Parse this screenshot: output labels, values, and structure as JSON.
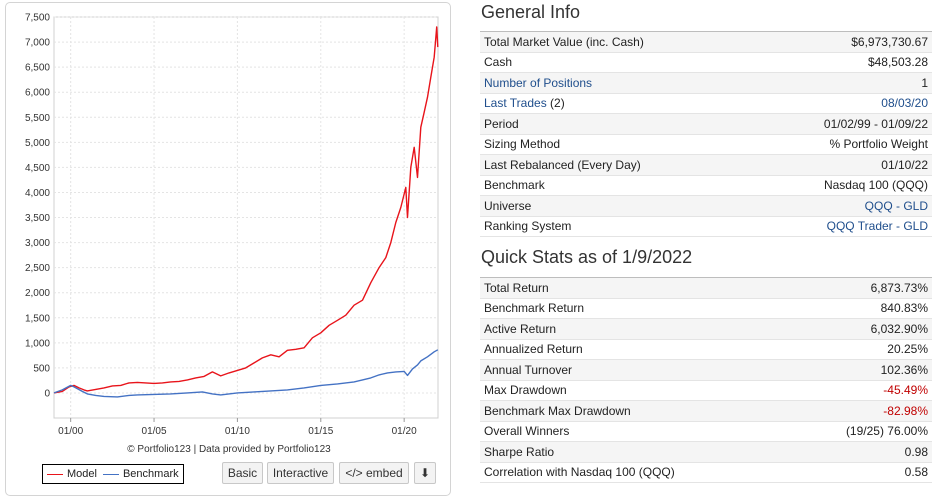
{
  "chart_data": {
    "type": "line",
    "ylim": [
      -500,
      7500
    ],
    "yticks": [
      0,
      500,
      1000,
      1500,
      2000,
      2500,
      3000,
      3500,
      4000,
      4500,
      5000,
      5500,
      6000,
      6500,
      7000,
      7500
    ],
    "ytick_labels": [
      "0",
      "500",
      "1,000",
      "1,500",
      "2,000",
      "2,500",
      "3,000",
      "3,500",
      "4,000",
      "4,500",
      "5,000",
      "5,500",
      "6,000",
      "6,500",
      "7,000",
      "7,500"
    ],
    "xlim": [
      1999.0,
      2022.03
    ],
    "xticks": [
      2000,
      2005,
      2010,
      2015,
      2020
    ],
    "xtick_labels": [
      "01/00",
      "01/05",
      "01/10",
      "01/15",
      "01/20"
    ],
    "grid": true,
    "legend": "bottom-left",
    "series": [
      {
        "name": "Model",
        "color": "#e8141b",
        "x": [
          1999.0,
          1999.5,
          1999.9,
          2000.2,
          2000.5,
          2000.8,
          2001.0,
          2001.5,
          2002.0,
          2002.5,
          2003.0,
          2003.5,
          2004.0,
          2004.5,
          2005.0,
          2005.5,
          2006.0,
          2006.5,
          2007.0,
          2007.5,
          2008.0,
          2008.5,
          2009.0,
          2009.5,
          2010.0,
          2010.5,
          2011.0,
          2011.5,
          2012.0,
          2012.5,
          2013.0,
          2013.5,
          2014.0,
          2014.5,
          2015.0,
          2015.5,
          2016.0,
          2016.5,
          2017.0,
          2017.5,
          2018.0,
          2018.5,
          2018.9,
          2019.2,
          2019.5,
          2019.8,
          2020.1,
          2020.2,
          2020.4,
          2020.6,
          2020.8,
          2021.0,
          2021.2,
          2021.4,
          2021.6,
          2021.8,
          2021.95,
          2022.02
        ],
        "y": [
          0,
          30,
          120,
          150,
          100,
          60,
          40,
          70,
          100,
          140,
          150,
          200,
          210,
          200,
          190,
          200,
          220,
          230,
          260,
          300,
          330,
          420,
          340,
          400,
          450,
          500,
          600,
          700,
          760,
          720,
          850,
          870,
          900,
          1100,
          1200,
          1350,
          1450,
          1550,
          1750,
          1850,
          2200,
          2500,
          2700,
          3000,
          3400,
          3700,
          4100,
          3500,
          4500,
          4900,
          4300,
          5300,
          5600,
          5900,
          6300,
          6700,
          7300,
          6900
        ]
      },
      {
        "name": "Benchmark",
        "color": "#4472c4",
        "x": [
          1999.0,
          1999.5,
          2000.0,
          2000.2,
          2000.7,
          2001.0,
          2001.5,
          2002.0,
          2002.8,
          2003.5,
          2004.0,
          2005.0,
          2006.0,
          2007.0,
          2007.9,
          2008.5,
          2009.0,
          2010.0,
          2011.0,
          2012.0,
          2013.0,
          2014.0,
          2015.0,
          2016.0,
          2017.0,
          2017.5,
          2018.0,
          2018.5,
          2019.0,
          2019.5,
          2020.0,
          2020.2,
          2020.5,
          2020.8,
          2021.0,
          2021.4,
          2021.8,
          2022.02
        ],
        "y": [
          0,
          60,
          150,
          120,
          30,
          -20,
          -50,
          -70,
          -80,
          -50,
          -40,
          -30,
          -20,
          0,
          20,
          -20,
          -40,
          0,
          20,
          40,
          60,
          100,
          150,
          180,
          220,
          260,
          300,
          360,
          400,
          420,
          430,
          350,
          480,
          560,
          640,
          720,
          820,
          860
        ]
      }
    ]
  },
  "chart_panel": {
    "credit": "© Portfolio123 | Data provided by Portfolio123",
    "legend_model": "Model",
    "legend_benchmark": "Benchmark",
    "btn_basic": "Basic",
    "btn_interactive": "Interactive",
    "btn_embed": "</> embed",
    "btn_download": "⬇"
  },
  "general_info": {
    "title": "General Info",
    "rows": [
      {
        "label": "Total Market Value (inc. Cash)",
        "value": "$6,973,730.67"
      },
      {
        "label": "Cash",
        "value": "$48,503.28"
      },
      {
        "label": "Number of Positions",
        "value": "1"
      },
      {
        "label": "Last Trades",
        "label_suffix": "(2)",
        "value": "08/03/20"
      },
      {
        "label": "Period",
        "value": "01/02/99 - 01/09/22"
      },
      {
        "label": "Sizing Method",
        "value": "% Portfolio Weight"
      },
      {
        "label": "Last Rebalanced (Every Day)",
        "value": "01/10/22"
      },
      {
        "label": "Benchmark",
        "value": "Nasdaq 100 (QQQ)"
      },
      {
        "label": "Universe",
        "value": "QQQ - GLD"
      },
      {
        "label": "Ranking System",
        "value": "QQQ Trader - GLD"
      }
    ]
  },
  "quick_stats": {
    "title": "Quick Stats as of 1/9/2022",
    "rows": [
      {
        "label": "Total Return",
        "value": "6,873.73%"
      },
      {
        "label": "Benchmark Return",
        "value": "840.83%"
      },
      {
        "label": "Active Return",
        "value": "6,032.90%"
      },
      {
        "label": "Annualized Return",
        "value": "20.25%"
      },
      {
        "label": "Annual Turnover",
        "value": "102.36%"
      },
      {
        "label": "Max Drawdown",
        "value": "-45.49%"
      },
      {
        "label": "Benchmark Max Drawdown",
        "value": "-82.98%"
      },
      {
        "label": "Overall Winners",
        "value": "(19/25) 76.00%"
      },
      {
        "label": "Sharpe Ratio",
        "value": "0.98"
      },
      {
        "label": "Correlation with Nasdaq 100 (QQQ)",
        "value": "0.58"
      }
    ]
  }
}
